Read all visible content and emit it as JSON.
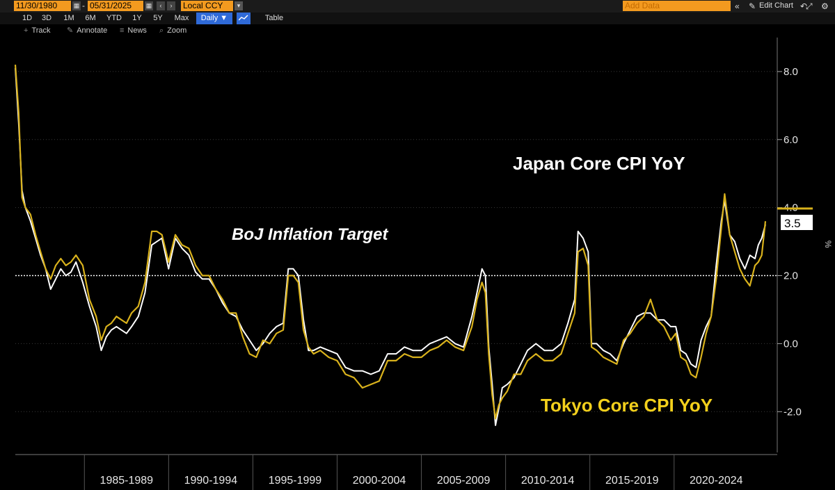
{
  "toolbar": {
    "start_date": "11/30/1980",
    "end_date": "05/31/2025",
    "currency": "Local CCY",
    "ranges": [
      "1D",
      "3D",
      "1M",
      "6M",
      "YTD",
      "1Y",
      "5Y",
      "Max"
    ],
    "frequency": "Daily ▼",
    "table_label": "Table",
    "add_data_placeholder": "Add Data",
    "edit_chart_label": "Edit Chart",
    "tools": [
      "Track",
      "Annotate",
      "News",
      "Zoom"
    ],
    "accent": "#f39a1f"
  },
  "chart_data": {
    "type": "line",
    "ylabel": "%",
    "ylim": [
      -3.2,
      9.0
    ],
    "yticks": [
      8.0,
      6.0,
      4.0,
      2.0,
      0.0,
      -2.0
    ],
    "x_range": [
      1980.9,
      2025.42
    ],
    "period_labels": [
      "1985-1989",
      "1990-1994",
      "1995-1999",
      "2000-2004",
      "2005-2009",
      "2010-2014",
      "2015-2019",
      "2020-2024"
    ],
    "last_value_label": "3.5",
    "reference_line": {
      "value": 2.0,
      "label": "BoJ Inflation Target"
    },
    "annotations": {
      "japan": "Japan Core CPI YoY",
      "tokyo": "Tokyo Core CPI YoY"
    },
    "series": [
      {
        "name": "Japan Core CPI YoY",
        "color": "#ffffff",
        "x": [
          1980.9,
          1981.1,
          1981.3,
          1981.5,
          1981.8,
          1982.1,
          1982.4,
          1982.7,
          1983.0,
          1983.3,
          1983.6,
          1983.9,
          1984.2,
          1984.5,
          1984.9,
          1985.3,
          1985.7,
          1986.0,
          1986.3,
          1986.6,
          1986.9,
          1987.2,
          1987.5,
          1987.8,
          1988.2,
          1988.6,
          1989.0,
          1989.3,
          1989.6,
          1990.0,
          1990.4,
          1990.8,
          1991.2,
          1991.6,
          1992.0,
          1992.4,
          1992.8,
          1993.2,
          1993.6,
          1994.0,
          1994.4,
          1994.8,
          1995.2,
          1995.6,
          1996.0,
          1996.4,
          1996.8,
          1997.1,
          1997.4,
          1997.7,
          1998.0,
          1998.3,
          1998.6,
          1999.0,
          1999.5,
          2000.0,
          2000.5,
          2001.0,
          2001.5,
          2002.0,
          2002.5,
          2003.0,
          2003.5,
          2004.0,
          2004.5,
          2005.0,
          2005.5,
          2006.0,
          2006.5,
          2007.0,
          2007.5,
          2008.0,
          2008.3,
          2008.6,
          2008.8,
          2009.0,
          2009.2,
          2009.4,
          2009.6,
          2009.8,
          2010.1,
          2010.5,
          2010.9,
          2011.3,
          2011.8,
          2012.3,
          2012.8,
          2013.3,
          2013.7,
          2014.1,
          2014.3,
          2014.6,
          2014.9,
          2015.1,
          2015.4,
          2015.8,
          2016.2,
          2016.6,
          2017.0,
          2017.4,
          2017.8,
          2018.2,
          2018.6,
          2019.0,
          2019.4,
          2019.8,
          2020.1,
          2020.4,
          2020.7,
          2021.0,
          2021.3,
          2021.6,
          2021.9,
          2022.2,
          2022.5,
          2022.8,
          2023.0,
          2023.3,
          2023.6,
          2023.9,
          2024.2,
          2024.5,
          2024.8,
          2025.0,
          2025.2,
          2025.42
        ],
        "y": [
          8.1,
          6.5,
          4.5,
          4.0,
          3.6,
          3.1,
          2.6,
          2.2,
          1.6,
          1.9,
          2.2,
          2.0,
          2.1,
          2.4,
          1.8,
          1.1,
          0.5,
          -0.2,
          0.2,
          0.4,
          0.5,
          0.4,
          0.3,
          0.5,
          0.8,
          1.5,
          2.9,
          3.0,
          3.1,
          2.2,
          3.1,
          2.8,
          2.6,
          2.1,
          1.9,
          1.9,
          1.6,
          1.2,
          0.9,
          0.8,
          0.4,
          0.1,
          -0.2,
          0.0,
          0.3,
          0.5,
          0.6,
          2.2,
          2.2,
          2.0,
          0.7,
          -0.2,
          -0.2,
          -0.1,
          -0.2,
          -0.3,
          -0.7,
          -0.8,
          -0.8,
          -0.9,
          -0.8,
          -0.3,
          -0.3,
          -0.1,
          -0.2,
          -0.2,
          0.0,
          0.1,
          0.2,
          0.0,
          -0.1,
          0.8,
          1.5,
          2.2,
          2.0,
          -0.1,
          -1.2,
          -2.4,
          -1.9,
          -1.3,
          -1.2,
          -1.0,
          -0.6,
          -0.2,
          0.0,
          -0.2,
          -0.2,
          0.0,
          0.6,
          1.3,
          3.3,
          3.1,
          2.7,
          0.0,
          0.0,
          -0.2,
          -0.3,
          -0.5,
          0.0,
          0.4,
          0.8,
          0.9,
          0.9,
          0.7,
          0.7,
          0.5,
          0.5,
          -0.2,
          -0.3,
          -0.6,
          -0.7,
          0.1,
          0.5,
          0.8,
          2.3,
          3.6,
          4.2,
          3.2,
          3.0,
          2.5,
          2.2,
          2.6,
          2.5,
          2.9,
          3.1,
          3.5
        ]
      },
      {
        "name": "Tokyo Core CPI YoY",
        "color": "#d9b21c",
        "x": [
          1980.9,
          1981.1,
          1981.3,
          1981.5,
          1981.8,
          1982.1,
          1982.4,
          1982.7,
          1983.0,
          1983.3,
          1983.6,
          1983.9,
          1984.2,
          1984.5,
          1984.9,
          1985.3,
          1985.7,
          1986.0,
          1986.3,
          1986.6,
          1986.9,
          1987.2,
          1987.5,
          1987.8,
          1988.2,
          1988.6,
          1989.0,
          1989.3,
          1989.6,
          1990.0,
          1990.4,
          1990.8,
          1991.2,
          1991.6,
          1992.0,
          1992.4,
          1992.8,
          1993.2,
          1993.6,
          1994.0,
          1994.4,
          1994.8,
          1995.2,
          1995.6,
          1996.0,
          1996.4,
          1996.8,
          1997.1,
          1997.4,
          1997.7,
          1998.0,
          1998.3,
          1998.6,
          1999.0,
          1999.5,
          2000.0,
          2000.5,
          2001.0,
          2001.5,
          2002.0,
          2002.5,
          2003.0,
          2003.5,
          2004.0,
          2004.5,
          2005.0,
          2005.5,
          2006.0,
          2006.5,
          2007.0,
          2007.5,
          2008.0,
          2008.3,
          2008.6,
          2008.8,
          2009.0,
          2009.2,
          2009.4,
          2009.6,
          2009.8,
          2010.1,
          2010.5,
          2010.9,
          2011.3,
          2011.8,
          2012.3,
          2012.8,
          2013.3,
          2013.7,
          2014.1,
          2014.3,
          2014.6,
          2014.9,
          2015.1,
          2015.4,
          2015.8,
          2016.2,
          2016.6,
          2017.0,
          2017.4,
          2017.8,
          2018.2,
          2018.6,
          2019.0,
          2019.4,
          2019.8,
          2020.1,
          2020.4,
          2020.7,
          2021.0,
          2021.3,
          2021.6,
          2021.9,
          2022.2,
          2022.5,
          2022.8,
          2023.0,
          2023.3,
          2023.6,
          2023.9,
          2024.2,
          2024.5,
          2024.8,
          2025.0,
          2025.2,
          2025.42
        ],
        "y": [
          8.2,
          6.8,
          4.3,
          4.0,
          3.8,
          3.2,
          2.7,
          2.2,
          1.9,
          2.3,
          2.5,
          2.3,
          2.4,
          2.6,
          2.3,
          1.3,
          0.8,
          0.1,
          0.5,
          0.6,
          0.8,
          0.7,
          0.6,
          0.9,
          1.1,
          1.8,
          3.3,
          3.3,
          3.2,
          2.4,
          3.2,
          2.9,
          2.8,
          2.3,
          2.0,
          2.0,
          1.6,
          1.3,
          0.9,
          0.9,
          0.2,
          -0.3,
          -0.4,
          0.1,
          0.0,
          0.3,
          0.4,
          2.0,
          2.0,
          1.8,
          0.4,
          -0.1,
          -0.3,
          -0.2,
          -0.4,
          -0.5,
          -0.9,
          -1.0,
          -1.3,
          -1.2,
          -1.1,
          -0.5,
          -0.5,
          -0.3,
          -0.4,
          -0.4,
          -0.2,
          -0.1,
          0.1,
          -0.1,
          -0.2,
          0.5,
          1.3,
          1.8,
          1.5,
          -0.3,
          -1.5,
          -2.2,
          -1.8,
          -1.6,
          -1.4,
          -0.9,
          -0.9,
          -0.5,
          -0.3,
          -0.5,
          -0.5,
          -0.3,
          0.3,
          0.9,
          2.7,
          2.8,
          2.3,
          -0.1,
          -0.2,
          -0.4,
          -0.5,
          -0.6,
          0.1,
          0.3,
          0.6,
          0.8,
          1.3,
          0.7,
          0.5,
          0.1,
          0.3,
          -0.4,
          -0.5,
          -0.9,
          -1.0,
          -0.4,
          0.3,
          0.8,
          1.9,
          3.4,
          4.4,
          3.2,
          2.7,
          2.2,
          1.9,
          1.7,
          2.3,
          2.4,
          2.6,
          3.6
        ]
      }
    ]
  }
}
